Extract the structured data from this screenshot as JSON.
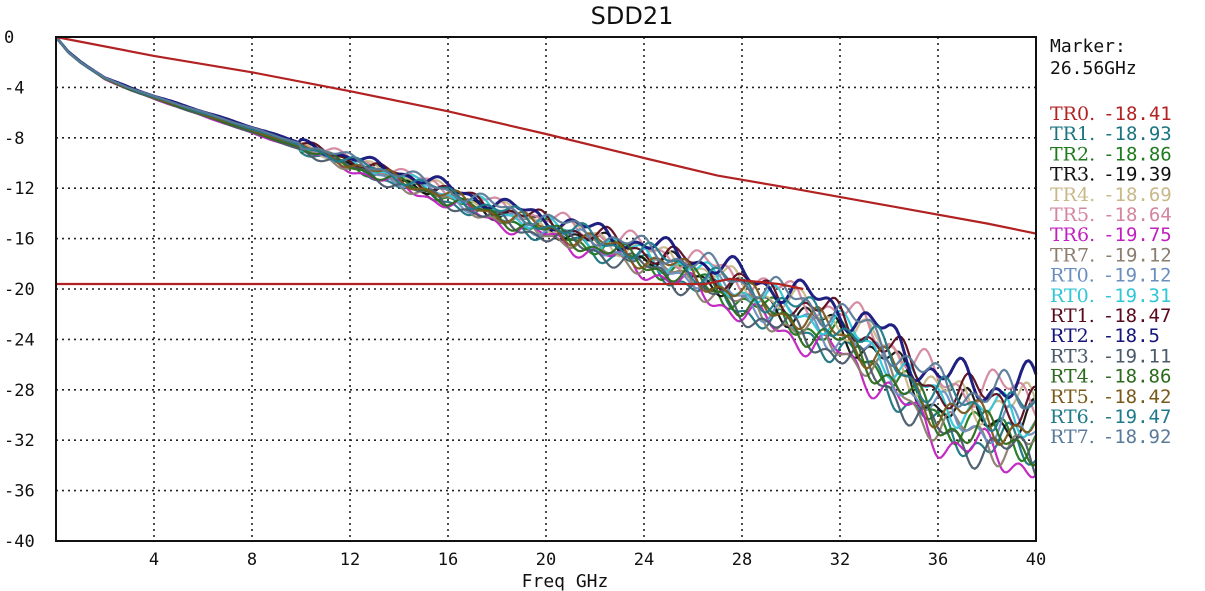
{
  "chart_data": {
    "type": "line",
    "title": "SDD21",
    "xlabel": "Freq GHz",
    "ylabel": "",
    "xlim": [
      0,
      40
    ],
    "ylim": [
      -40,
      0
    ],
    "x_ticks": [
      4,
      8,
      12,
      16,
      20,
      24,
      28,
      32,
      36,
      40
    ],
    "y_ticks": [
      0,
      -4,
      -8,
      -12,
      -16,
      -20,
      -24,
      -28,
      -32,
      -36,
      -40
    ],
    "grid": true,
    "legend_position": "right",
    "marker": {
      "title": "Marker:",
      "value": "26.56GHz"
    },
    "limit_lines": [
      {
        "color": "#b22222",
        "points": [
          [
            0,
            0
          ],
          [
            4,
            -1.5
          ],
          [
            8,
            -2.8
          ],
          [
            12,
            -4.3
          ],
          [
            16,
            -5.9
          ],
          [
            20,
            -7.7
          ],
          [
            24,
            -9.6
          ],
          [
            27,
            -11
          ],
          [
            30,
            -12
          ],
          [
            34,
            -13.4
          ],
          [
            38,
            -14.8
          ],
          [
            40,
            -15.6
          ]
        ]
      },
      {
        "color": "#b22222",
        "points": [
          [
            0,
            -19.6
          ],
          [
            26.5,
            -19.6
          ],
          [
            27.5,
            -19.2
          ],
          [
            29.5,
            -19.6
          ],
          [
            30.5,
            -20
          ]
        ]
      }
    ],
    "traces": {
      "base_points": [
        [
          0,
          0
        ],
        [
          0.5,
          -1.2
        ],
        [
          1,
          -2
        ],
        [
          2,
          -3.3
        ],
        [
          3,
          -4.1
        ],
        [
          4,
          -4.8
        ],
        [
          6,
          -6.1
        ],
        [
          8,
          -7.4
        ],
        [
          10,
          -8.7
        ],
        [
          12,
          -10
        ],
        [
          14,
          -11.3
        ],
        [
          16,
          -12.6
        ],
        [
          18,
          -14
        ],
        [
          20,
          -15.1
        ],
        [
          22,
          -16.3
        ],
        [
          24,
          -17.5
        ],
        [
          26,
          -18.8
        ],
        [
          28,
          -20.5
        ],
        [
          30,
          -22
        ],
        [
          32,
          -23.5
        ],
        [
          34,
          -26
        ],
        [
          35,
          -28
        ],
        [
          36,
          -29.5
        ],
        [
          38,
          -30.5
        ],
        [
          40,
          -31
        ]
      ],
      "spread_points": [
        [
          0,
          0
        ],
        [
          10,
          0.3
        ],
        [
          14,
          0.6
        ],
        [
          20,
          0.8
        ],
        [
          24,
          1.0
        ],
        [
          28,
          1.6
        ],
        [
          32,
          2.0
        ],
        [
          36,
          2.6
        ],
        [
          40,
          3.2
        ]
      ]
    },
    "series": [
      {
        "name": "TR0.",
        "value": "-18.41",
        "color": "#b22222"
      },
      {
        "name": "TR1.",
        "value": "-18.93",
        "color": "#1a7580"
      },
      {
        "name": "TR2.",
        "value": "-18.86",
        "color": "#1f7a1f"
      },
      {
        "name": "TR3.",
        "value": "-19.39",
        "color": "#111111"
      },
      {
        "name": "TR4.",
        "value": "-18.69",
        "color": "#c8b88a"
      },
      {
        "name": "TR5.",
        "value": "-18.64",
        "color": "#d4869e"
      },
      {
        "name": "TR6.",
        "value": "-19.75",
        "color": "#c020c0"
      },
      {
        "name": "TR7.",
        "value": "-19.12",
        "color": "#8c7d6e"
      },
      {
        "name": "RT0.",
        "value": "-19.12",
        "color": "#6a8fbf"
      },
      {
        "name": "RT0.",
        "value": "-19.31",
        "color": "#2fc6d6"
      },
      {
        "name": "RT1.",
        "value": "-18.47",
        "color": "#5a0a1a"
      },
      {
        "name": "RT2.",
        "value": "-18.5",
        "color": "#14147a"
      },
      {
        "name": "RT3.",
        "value": "-19.11",
        "color": "#4a5a6a"
      },
      {
        "name": "RT4.",
        "value": "-18.86",
        "color": "#2c6a1e"
      },
      {
        "name": "RT5.",
        "value": "-18.42",
        "color": "#7a5a1a"
      },
      {
        "name": "RT6.",
        "value": "-19.47",
        "color": "#1e7a8a"
      },
      {
        "name": "RT7.",
        "value": "-18.92",
        "color": "#5a7a9a"
      }
    ]
  }
}
